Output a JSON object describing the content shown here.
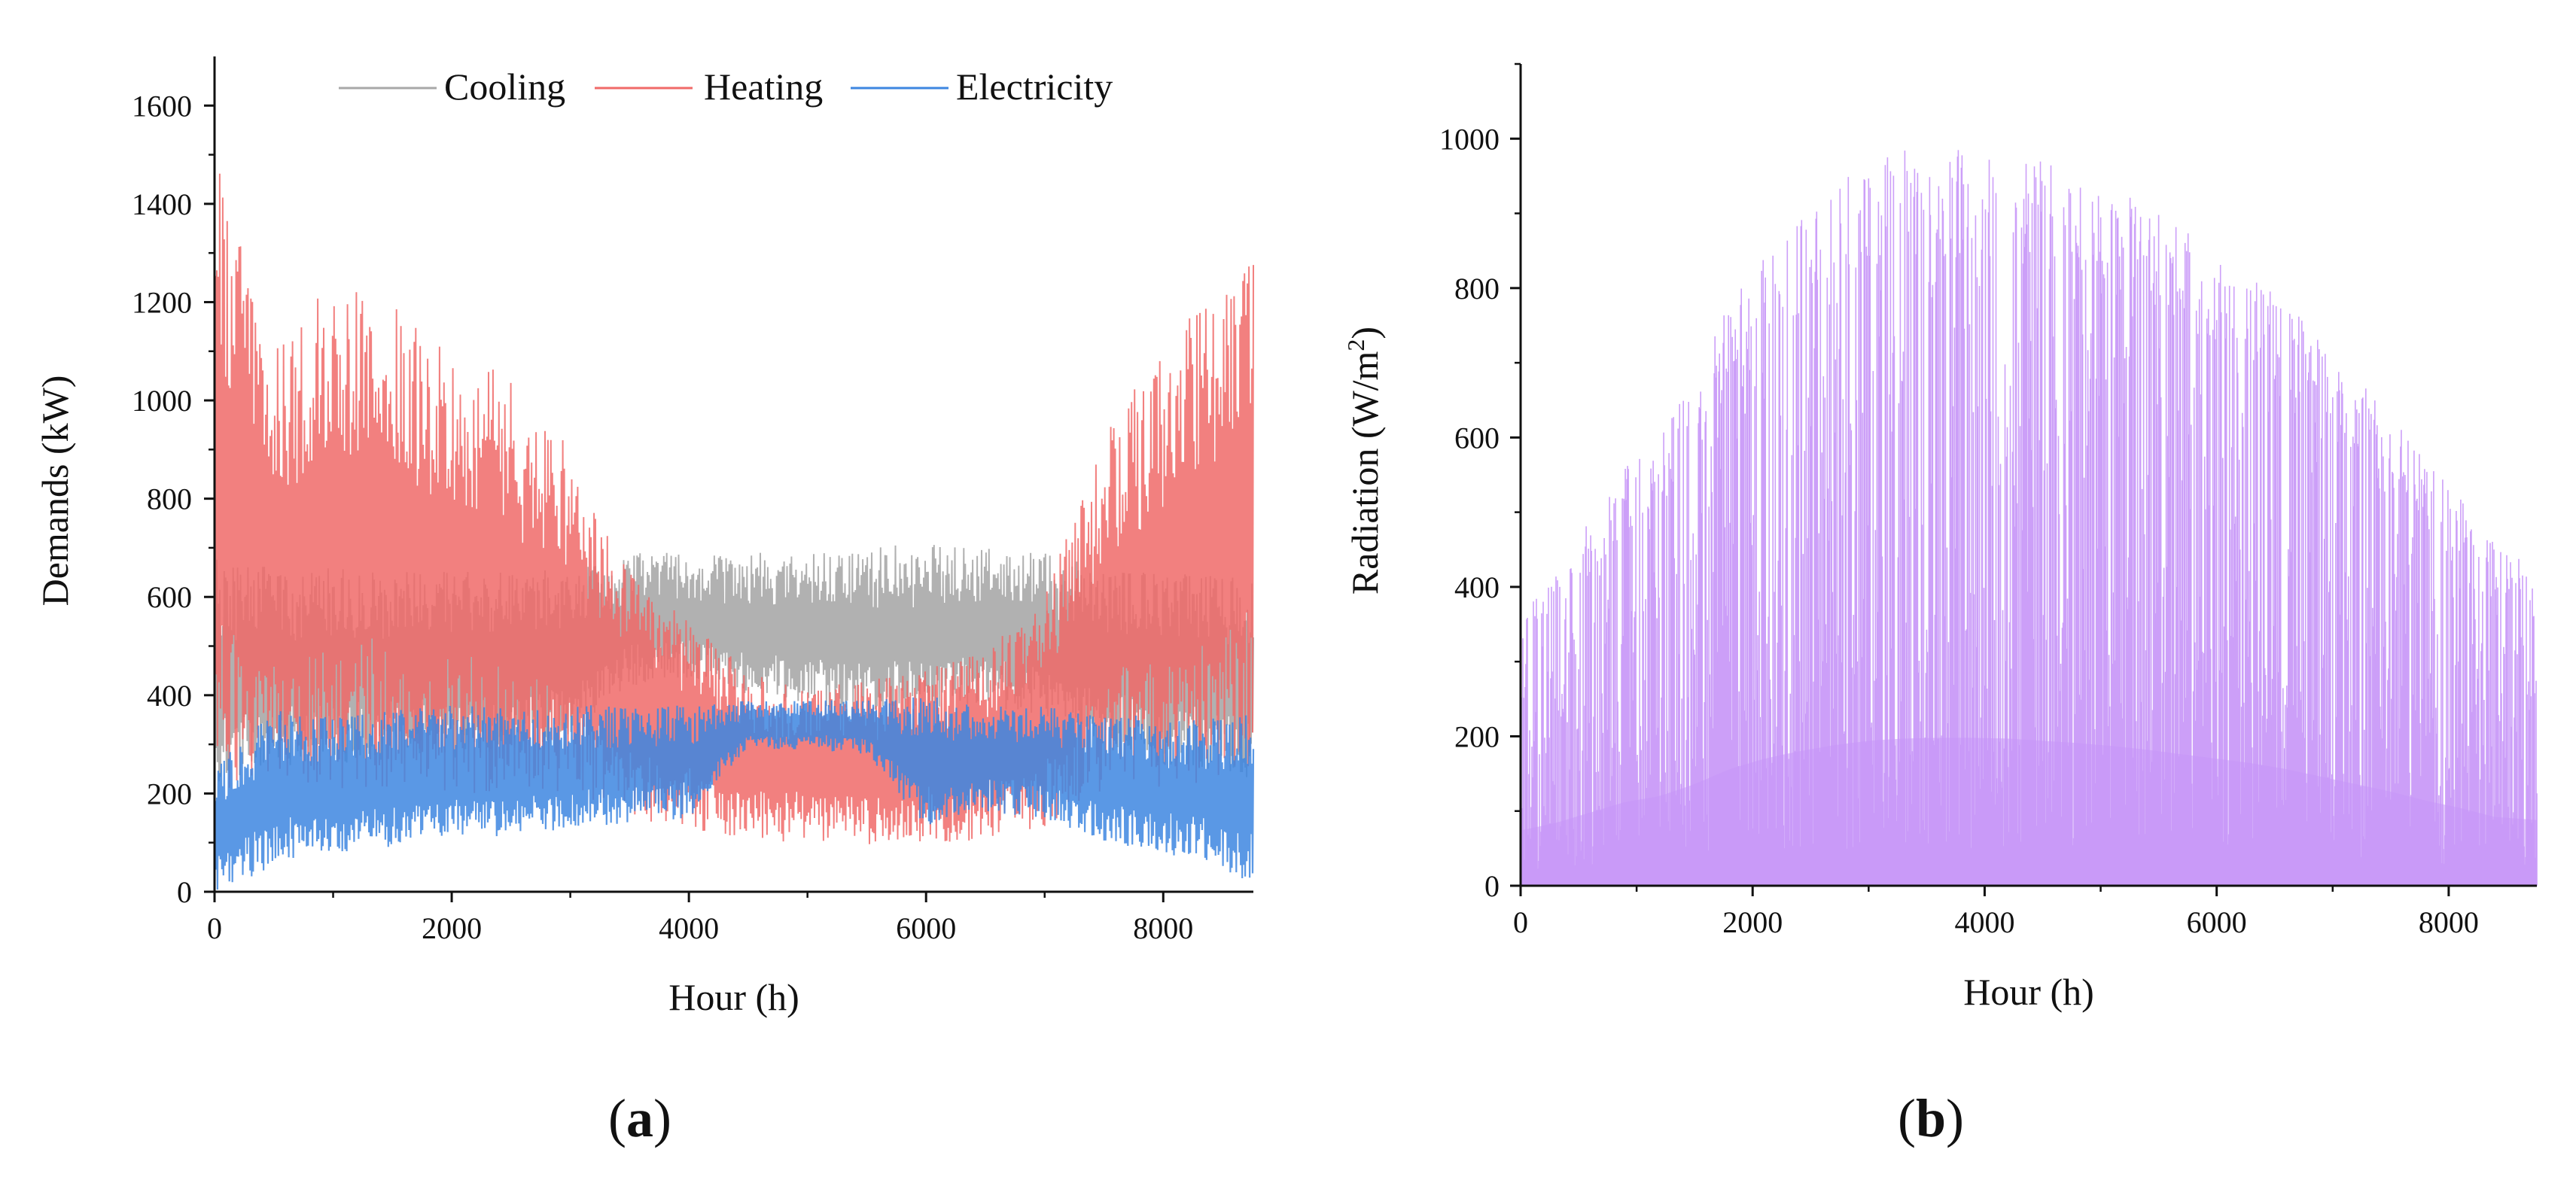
{
  "chart_data": [
    {
      "type": "line",
      "panel_label": "(a)",
      "panel_letter": "a",
      "xlabel": "Hour (h)",
      "ylabel": "Demands (kW)",
      "xlim": [
        0,
        8760
      ],
      "ylim": [
        0,
        1700
      ],
      "xticks": [
        "0",
        "2000",
        "4000",
        "6000",
        "8000"
      ],
      "yticks": [
        "0",
        "200",
        "400",
        "600",
        "800",
        "1000",
        "1200",
        "1400",
        "1600"
      ],
      "legend_position": "top",
      "series": [
        {
          "name": "Cooling",
          "color": "#a8a8a8",
          "envelope": {
            "hours": [
              0,
              500,
              1000,
              1500,
              2000,
              2500,
              3000,
              3500,
              4000,
              4500,
              5000,
              5500,
              6000,
              6500,
              7000,
              7500,
              8000,
              8760
            ],
            "low": [
              200,
              250,
              260,
              270,
              270,
              280,
              320,
              420,
              430,
              400,
              380,
              360,
              370,
              380,
              350,
              300,
              260,
              230
            ],
            "high": [
              680,
              660,
              660,
              660,
              650,
              660,
              650,
              690,
              690,
              690,
              690,
              700,
              710,
              700,
              690,
              660,
              650,
              640
            ]
          }
        },
        {
          "name": "Heating",
          "color": "#f06a68",
          "envelope": {
            "hours": [
              0,
              500,
              1000,
              1500,
              2000,
              2500,
              3000,
              3500,
              4000,
              4500,
              5000,
              5500,
              6000,
              6500,
              7000,
              7500,
              8000,
              8760
            ],
            "low": [
              200,
              220,
              210,
              200,
              190,
              200,
              190,
              150,
              120,
              105,
              100,
              95,
              100,
              105,
              130,
              190,
              210,
              230
            ],
            "high": [
              1500,
              1100,
              1250,
              1200,
              1100,
              1050,
              900,
              650,
              550,
              450,
              420,
              430,
              450,
              500,
              600,
              950,
              1100,
              1340
            ]
          }
        },
        {
          "name": "Electricity",
          "color": "#3d86e0",
          "envelope": {
            "hours": [
              0,
              500,
              1000,
              1500,
              2000,
              2500,
              3000,
              3500,
              4000,
              4500,
              5000,
              5500,
              6000,
              6500,
              7000,
              7500,
              8000,
              8760
            ],
            "low": [
              0,
              50,
              80,
              90,
              110,
              110,
              130,
              140,
              150,
              290,
              290,
              280,
              130,
              160,
              150,
              100,
              80,
              20
            ],
            "high": [
              260,
              370,
              360,
              380,
              380,
              380,
              380,
              380,
              380,
              390,
              390,
              390,
              400,
              380,
              380,
              370,
              350,
              360
            ]
          }
        }
      ]
    },
    {
      "type": "bar",
      "panel_label": "(b)",
      "panel_letter": "b",
      "xlabel": "Hour (h)",
      "ylabel": "Radiation (W/m²)",
      "ylabel_main": "Radiation (W/m",
      "ylabel_sup": "2",
      "ylabel_end": ")",
      "xlim": [
        0,
        8760
      ],
      "ylim": [
        0,
        1100
      ],
      "xticks": [
        "0",
        "2000",
        "4000",
        "6000",
        "8000"
      ],
      "yticks": [
        "0",
        "200",
        "400",
        "600",
        "800",
        "1000"
      ],
      "series": [
        {
          "name": "Radiation",
          "color": "#c795f7",
          "envelope": {
            "hours": [
              0,
              300,
              600,
              900,
              1200,
              1500,
              1800,
              2100,
              2400,
              2700,
              3000,
              3300,
              3600,
              3900,
              4200,
              4500,
              4800,
              5100,
              5400,
              5700,
              6000,
              6300,
              6600,
              6900,
              7200,
              7500,
              7800,
              8100,
              8400,
              8760
            ],
            "high": [
              370,
              420,
              490,
              560,
              600,
              680,
              780,
              850,
              900,
              940,
              970,
              985,
              990,
              990,
              985,
              970,
              955,
              935,
              910,
              880,
              850,
              820,
              780,
              730,
              680,
              630,
              570,
              520,
              460,
              440
            ]
          }
        }
      ]
    }
  ]
}
